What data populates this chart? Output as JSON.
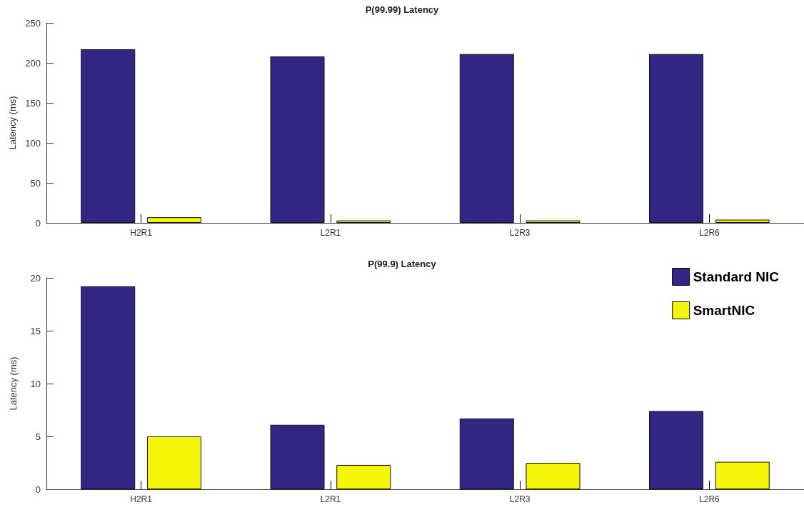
{
  "chart_data": [
    {
      "type": "bar",
      "title": "P(99.99) Latency",
      "ylabel": "Latency (ms)",
      "categories": [
        "H2R1",
        "L2R1",
        "L2R3",
        "L2R6"
      ],
      "series": [
        {
          "color": "#312783",
          "values": [
            217,
            208,
            211,
            211
          ]
        },
        {
          "color": "#f5f50a",
          "values": [
            7,
            3,
            3,
            4
          ]
        }
      ],
      "ylim": [
        0,
        250
      ],
      "yticks": [
        0,
        50,
        100,
        150,
        200,
        250
      ],
      "grid": false,
      "legend": false
    },
    {
      "type": "bar",
      "title": "P(99.9) Latency",
      "ylabel": "Latency (ms)",
      "categories": [
        "H2R1",
        "L2R1",
        "L2R3",
        "L2R6"
      ],
      "series": [
        {
          "name": "Standard NIC",
          "color": "#312783",
          "values": [
            19.2,
            6.1,
            6.7,
            7.4
          ]
        },
        {
          "name": "SmartNIC",
          "color": "#f5f50a",
          "values": [
            5.0,
            2.3,
            2.5,
            2.6
          ]
        }
      ],
      "ylim": [
        0,
        20
      ],
      "yticks": [
        0,
        5,
        10,
        15,
        20
      ],
      "grid": false,
      "legend": "top right"
    }
  ]
}
